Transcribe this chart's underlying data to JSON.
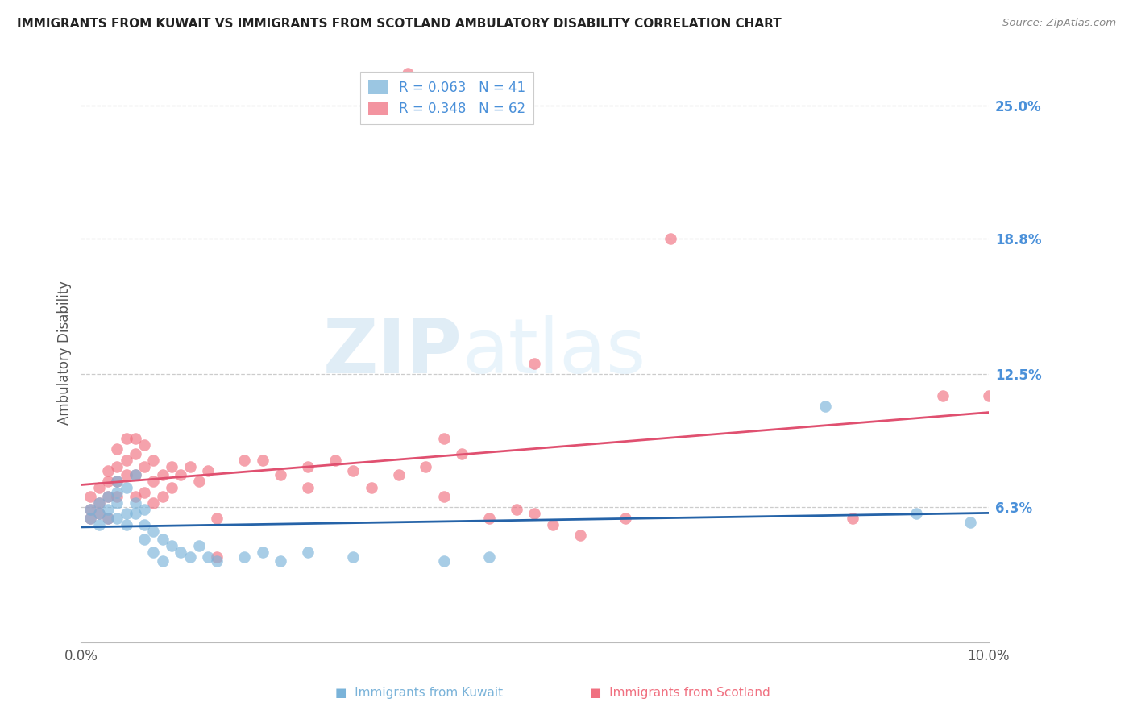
{
  "title": "IMMIGRANTS FROM KUWAIT VS IMMIGRANTS FROM SCOTLAND AMBULATORY DISABILITY CORRELATION CHART",
  "source": "Source: ZipAtlas.com",
  "ylabel": "Ambulatory Disability",
  "xlim": [
    0.0,
    0.1
  ],
  "ylim": [
    0.0,
    0.27
  ],
  "yticks": [
    0.063,
    0.125,
    0.188,
    0.25
  ],
  "ytick_labels": [
    "6.3%",
    "12.5%",
    "18.8%",
    "25.0%"
  ],
  "kuwait_color": "#7ab3d9",
  "scotland_color": "#f07080",
  "kuwait_line_color": "#2563a8",
  "scotland_line_color": "#e05070",
  "kuwait_R": 0.063,
  "kuwait_N": 41,
  "scotland_R": 0.348,
  "scotland_N": 62,
  "background_color": "#ffffff",
  "grid_color": "#cccccc",
  "right_label_color": "#4a90d9",
  "legend_R_color": "#4a90d9",
  "kuwait_points": [
    [
      0.001,
      0.062
    ],
    [
      0.001,
      0.058
    ],
    [
      0.002,
      0.065
    ],
    [
      0.002,
      0.06
    ],
    [
      0.002,
      0.055
    ],
    [
      0.003,
      0.068
    ],
    [
      0.003,
      0.058
    ],
    [
      0.003,
      0.062
    ],
    [
      0.004,
      0.07
    ],
    [
      0.004,
      0.065
    ],
    [
      0.004,
      0.058
    ],
    [
      0.004,
      0.075
    ],
    [
      0.005,
      0.072
    ],
    [
      0.005,
      0.06
    ],
    [
      0.005,
      0.055
    ],
    [
      0.006,
      0.065
    ],
    [
      0.006,
      0.06
    ],
    [
      0.006,
      0.078
    ],
    [
      0.007,
      0.048
    ],
    [
      0.007,
      0.055
    ],
    [
      0.007,
      0.062
    ],
    [
      0.008,
      0.042
    ],
    [
      0.008,
      0.052
    ],
    [
      0.009,
      0.048
    ],
    [
      0.009,
      0.038
    ],
    [
      0.01,
      0.045
    ],
    [
      0.011,
      0.042
    ],
    [
      0.012,
      0.04
    ],
    [
      0.013,
      0.045
    ],
    [
      0.014,
      0.04
    ],
    [
      0.015,
      0.038
    ],
    [
      0.018,
      0.04
    ],
    [
      0.02,
      0.042
    ],
    [
      0.022,
      0.038
    ],
    [
      0.025,
      0.042
    ],
    [
      0.03,
      0.04
    ],
    [
      0.04,
      0.038
    ],
    [
      0.045,
      0.04
    ],
    [
      0.082,
      0.11
    ],
    [
      0.092,
      0.06
    ],
    [
      0.098,
      0.056
    ]
  ],
  "scotland_points": [
    [
      0.001,
      0.062
    ],
    [
      0.001,
      0.068
    ],
    [
      0.001,
      0.058
    ],
    [
      0.002,
      0.065
    ],
    [
      0.002,
      0.072
    ],
    [
      0.002,
      0.06
    ],
    [
      0.003,
      0.075
    ],
    [
      0.003,
      0.068
    ],
    [
      0.003,
      0.08
    ],
    [
      0.003,
      0.058
    ],
    [
      0.004,
      0.082
    ],
    [
      0.004,
      0.075
    ],
    [
      0.004,
      0.068
    ],
    [
      0.004,
      0.09
    ],
    [
      0.005,
      0.085
    ],
    [
      0.005,
      0.078
    ],
    [
      0.005,
      0.095
    ],
    [
      0.006,
      0.088
    ],
    [
      0.006,
      0.078
    ],
    [
      0.006,
      0.095
    ],
    [
      0.006,
      0.068
    ],
    [
      0.007,
      0.092
    ],
    [
      0.007,
      0.082
    ],
    [
      0.007,
      0.07
    ],
    [
      0.008,
      0.075
    ],
    [
      0.008,
      0.085
    ],
    [
      0.008,
      0.065
    ],
    [
      0.009,
      0.078
    ],
    [
      0.009,
      0.068
    ],
    [
      0.01,
      0.082
    ],
    [
      0.01,
      0.072
    ],
    [
      0.011,
      0.078
    ],
    [
      0.012,
      0.082
    ],
    [
      0.013,
      0.075
    ],
    [
      0.014,
      0.08
    ],
    [
      0.015,
      0.058
    ],
    [
      0.015,
      0.04
    ],
    [
      0.018,
      0.085
    ],
    [
      0.02,
      0.085
    ],
    [
      0.022,
      0.078
    ],
    [
      0.025,
      0.072
    ],
    [
      0.025,
      0.082
    ],
    [
      0.028,
      0.085
    ],
    [
      0.03,
      0.08
    ],
    [
      0.032,
      0.072
    ],
    [
      0.035,
      0.078
    ],
    [
      0.036,
      0.265
    ],
    [
      0.038,
      0.082
    ],
    [
      0.04,
      0.095
    ],
    [
      0.04,
      0.068
    ],
    [
      0.042,
      0.088
    ],
    [
      0.045,
      0.058
    ],
    [
      0.048,
      0.062
    ],
    [
      0.05,
      0.06
    ],
    [
      0.05,
      0.13
    ],
    [
      0.052,
      0.055
    ],
    [
      0.055,
      0.05
    ],
    [
      0.06,
      0.058
    ],
    [
      0.065,
      0.188
    ],
    [
      0.085,
      0.058
    ],
    [
      0.095,
      0.115
    ],
    [
      0.1,
      0.115
    ]
  ]
}
